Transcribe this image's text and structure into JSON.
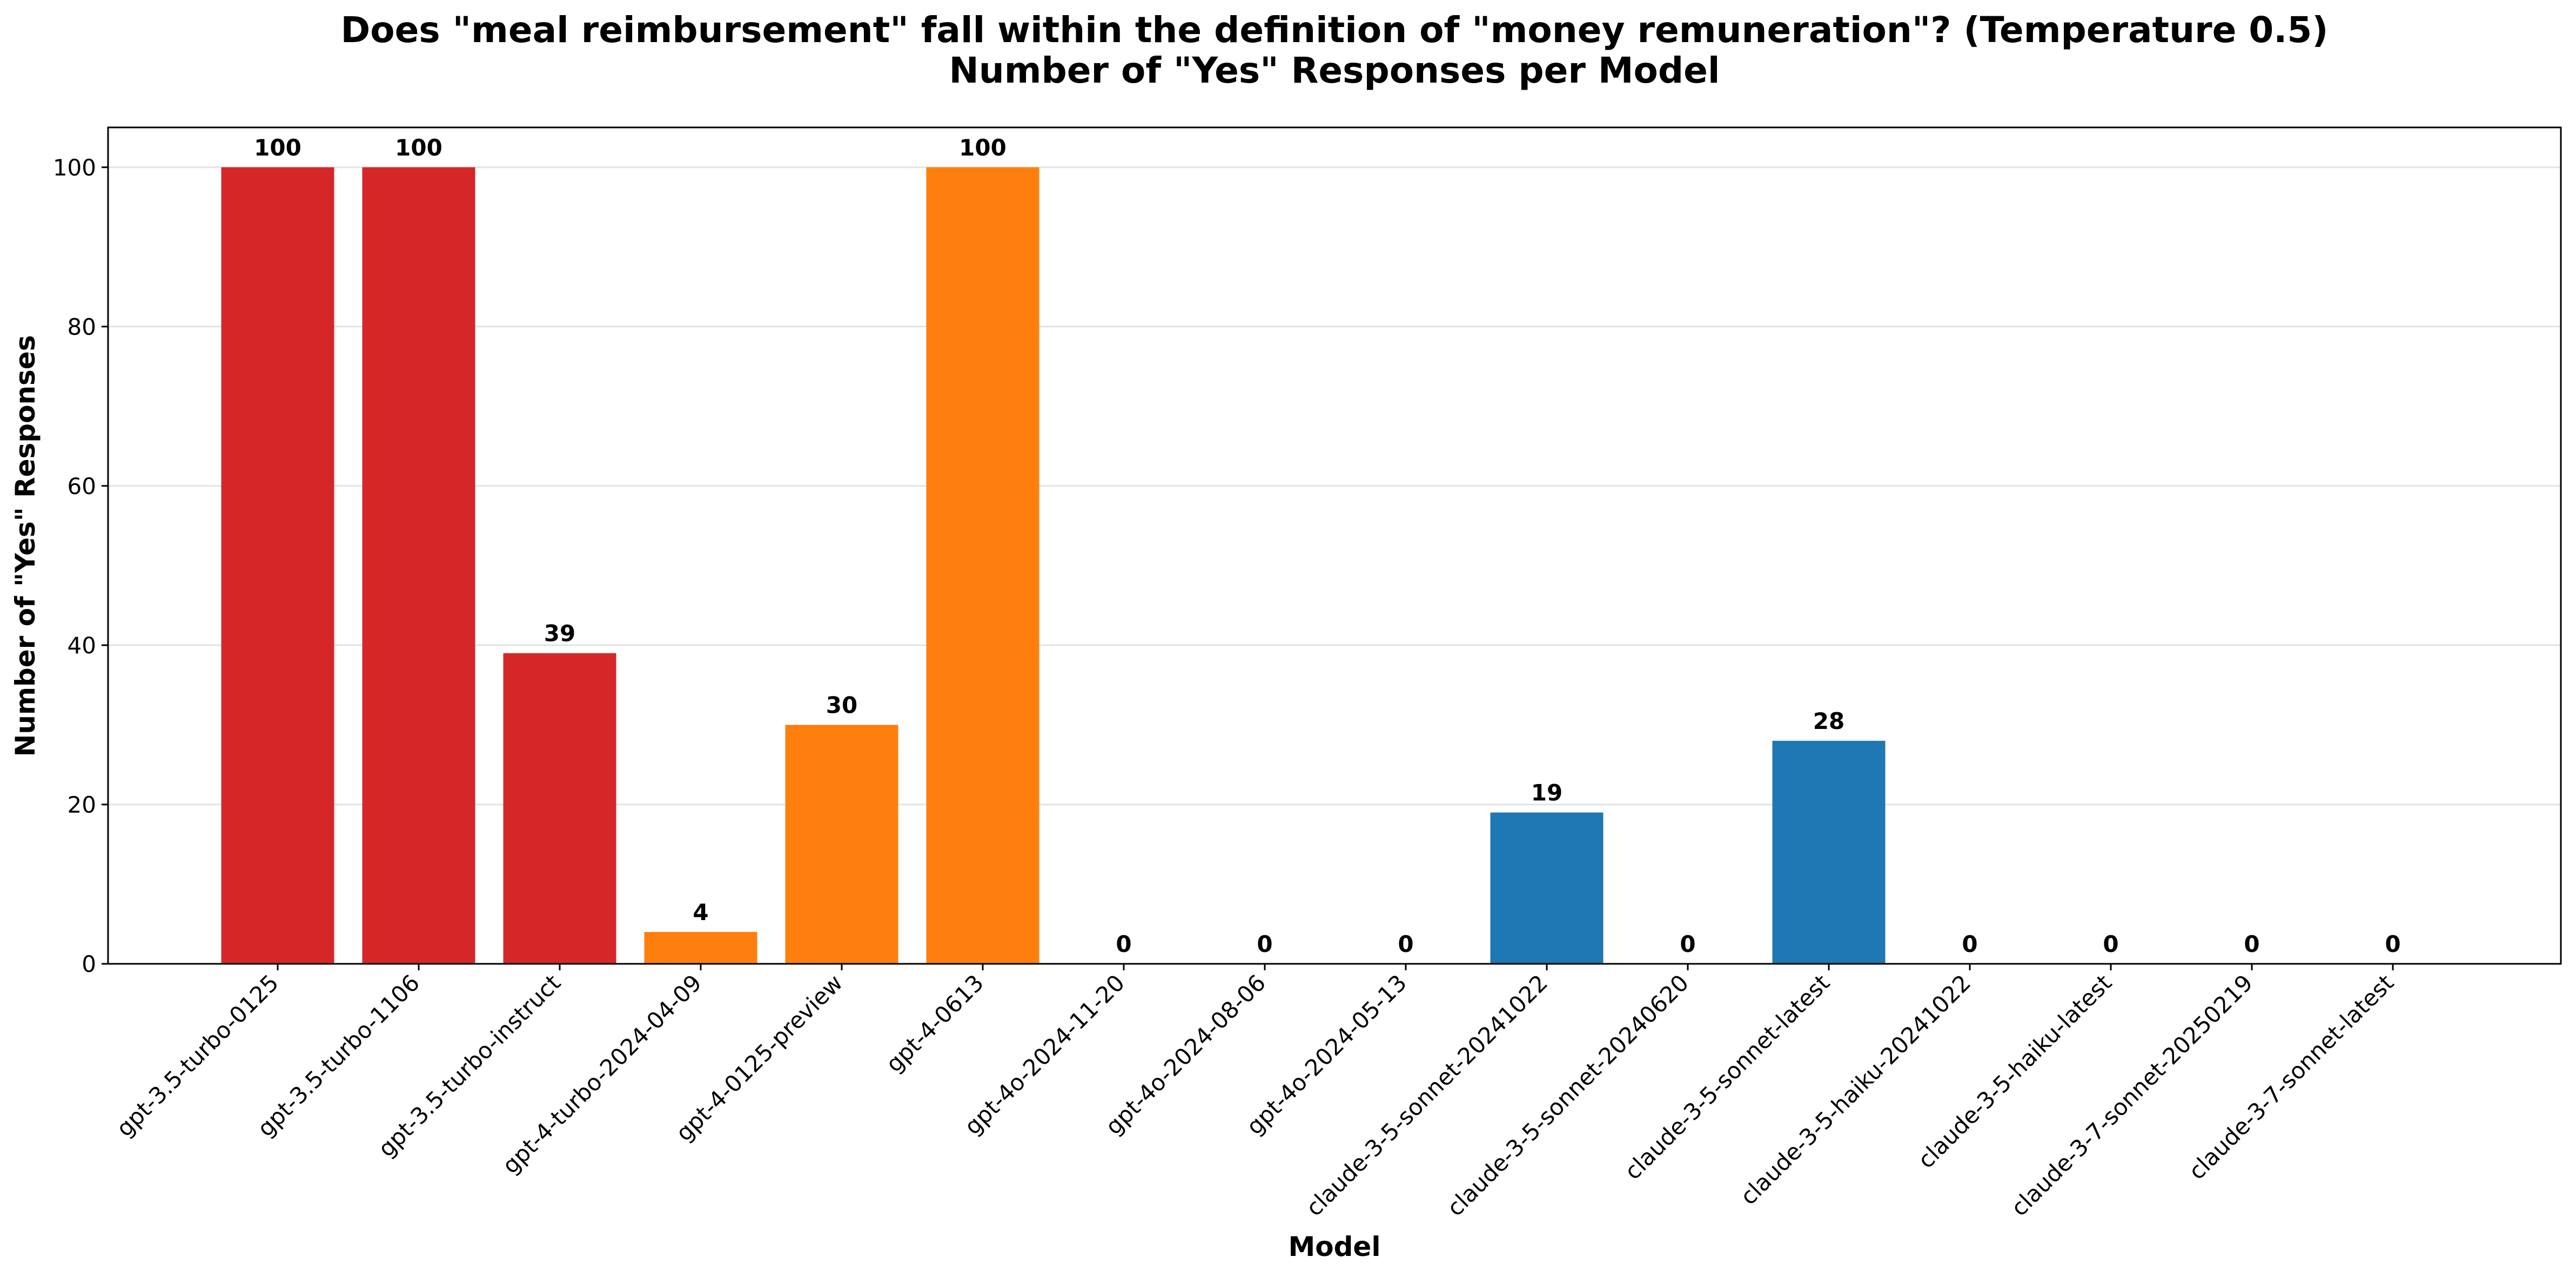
{
  "chart_data": {
    "type": "bar",
    "title": "Does \"meal reimbursement\" fall within the definition of \"money remuneration\"? (Temperature 0.5)",
    "subtitle": "Number of \"Yes\" Responses per Model",
    "xlabel": "Model",
    "ylabel": "Number of \"Yes\" Responses",
    "ylim": [
      0,
      105
    ],
    "yticks": [
      0,
      20,
      40,
      60,
      80,
      100
    ],
    "grid": "horizontal",
    "categories": [
      "gpt-3.5-turbo-0125",
      "gpt-3.5-turbo-1106",
      "gpt-3.5-turbo-instruct",
      "gpt-4-turbo-2024-04-09",
      "gpt-4-0125-preview",
      "gpt-4-0613",
      "gpt-4o-2024-11-20",
      "gpt-4o-2024-08-06",
      "gpt-4o-2024-05-13",
      "claude-3-5-sonnet-20241022",
      "claude-3-5-sonnet-20240620",
      "claude-3-5-sonnet-latest",
      "claude-3-5-haiku-20241022",
      "claude-3-5-haiku-latest",
      "claude-3-7-sonnet-20250219",
      "claude-3-7-sonnet-latest"
    ],
    "values": [
      100,
      100,
      39,
      4,
      30,
      100,
      0,
      0,
      0,
      19,
      0,
      28,
      0,
      0,
      0,
      0
    ],
    "colors": [
      "#d62728",
      "#d62728",
      "#d62728",
      "#ff7f0e",
      "#ff7f0e",
      "#ff7f0e",
      "#ff7f0e",
      "#ff7f0e",
      "#ff7f0e",
      "#1f77b4",
      "#1f77b4",
      "#1f77b4",
      "#1f77b4",
      "#1f77b4",
      "#1f77b4",
      "#1f77b4"
    ]
  }
}
